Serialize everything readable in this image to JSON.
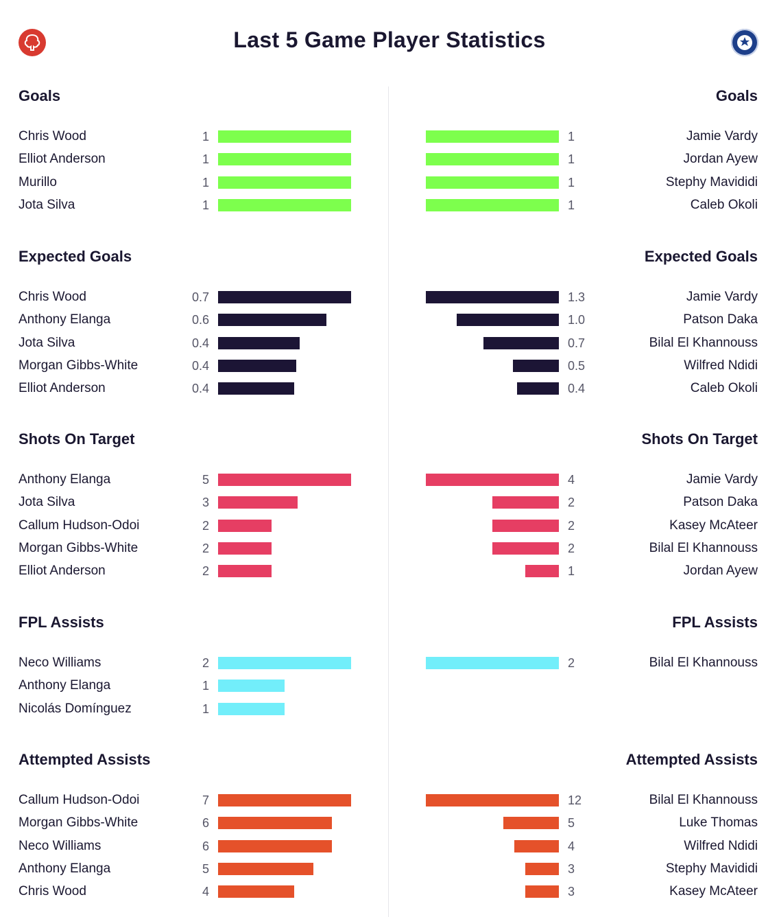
{
  "title": "Last 5 Game Player Statistics",
  "colors": {
    "goals": "#7dff4d",
    "xg": "#1c1535",
    "shots": "#e63e63",
    "assists": "#72eefa",
    "attempted": "#e5512a"
  },
  "chart_data": [
    {
      "type": "bar",
      "stat": "Goals",
      "color_key": "goals",
      "home": [
        {
          "name": "Chris Wood",
          "value": 1,
          "label": "1"
        },
        {
          "name": "Elliot Anderson",
          "value": 1,
          "label": "1"
        },
        {
          "name": "Murillo",
          "value": 1,
          "label": "1"
        },
        {
          "name": "Jota Silva",
          "value": 1,
          "label": "1"
        }
      ],
      "away": [
        {
          "name": "Jamie Vardy",
          "value": 1,
          "label": "1"
        },
        {
          "name": "Jordan Ayew",
          "value": 1,
          "label": "1"
        },
        {
          "name": "Stephy Mavididi",
          "value": 1,
          "label": "1"
        },
        {
          "name": "Caleb Okoli",
          "value": 1,
          "label": "1"
        }
      ]
    },
    {
      "type": "bar",
      "stat": "Expected Goals",
      "color_key": "xg",
      "home": [
        {
          "name": "Chris Wood",
          "value": 0.7,
          "label": "0.7"
        },
        {
          "name": "Anthony Elanga",
          "value": 0.57,
          "label": "0.6"
        },
        {
          "name": "Jota Silva",
          "value": 0.43,
          "label": "0.4"
        },
        {
          "name": "Morgan Gibbs-White",
          "value": 0.41,
          "label": "0.4"
        },
        {
          "name": "Elliot Anderson",
          "value": 0.4,
          "label": "0.4"
        }
      ],
      "away": [
        {
          "name": "Jamie Vardy",
          "value": 1.3,
          "label": "1.3"
        },
        {
          "name": "Patson Daka",
          "value": 1.0,
          "label": "1.0"
        },
        {
          "name": "Bilal El Khannouss",
          "value": 0.74,
          "label": "0.7"
        },
        {
          "name": "Wilfred Ndidi",
          "value": 0.45,
          "label": "0.5"
        },
        {
          "name": "Caleb Okoli",
          "value": 0.41,
          "label": "0.4"
        }
      ]
    },
    {
      "type": "bar",
      "stat": "Shots On Target",
      "color_key": "shots",
      "home": [
        {
          "name": "Anthony Elanga",
          "value": 5,
          "label": "5"
        },
        {
          "name": "Jota Silva",
          "value": 3,
          "label": "3"
        },
        {
          "name": "Callum Hudson-Odoi",
          "value": 2,
          "label": "2"
        },
        {
          "name": "Morgan Gibbs-White",
          "value": 2,
          "label": "2"
        },
        {
          "name": "Elliot Anderson",
          "value": 2,
          "label": "2"
        }
      ],
      "away": [
        {
          "name": "Jamie Vardy",
          "value": 4,
          "label": "4"
        },
        {
          "name": "Patson Daka",
          "value": 2,
          "label": "2"
        },
        {
          "name": "Kasey McAteer",
          "value": 2,
          "label": "2"
        },
        {
          "name": "Bilal El Khannouss",
          "value": 2,
          "label": "2"
        },
        {
          "name": "Jordan Ayew",
          "value": 1,
          "label": "1"
        }
      ]
    },
    {
      "type": "bar",
      "stat": "FPL Assists",
      "color_key": "assists",
      "home": [
        {
          "name": "Neco Williams",
          "value": 2,
          "label": "2"
        },
        {
          "name": "Anthony Elanga",
          "value": 1,
          "label": "1"
        },
        {
          "name": "Nicolás Domínguez",
          "value": 1,
          "label": "1"
        }
      ],
      "away": [
        {
          "name": "Bilal El Khannouss",
          "value": 2,
          "label": "2"
        }
      ]
    },
    {
      "type": "bar",
      "stat": "Attempted Assists",
      "color_key": "attempted",
      "home": [
        {
          "name": "Callum Hudson-Odoi",
          "value": 7,
          "label": "7"
        },
        {
          "name": "Morgan Gibbs-White",
          "value": 6,
          "label": "6"
        },
        {
          "name": "Neco Williams",
          "value": 6,
          "label": "6"
        },
        {
          "name": "Anthony Elanga",
          "value": 5,
          "label": "5"
        },
        {
          "name": "Chris Wood",
          "value": 4,
          "label": "4"
        }
      ],
      "away": [
        {
          "name": "Bilal El Khannouss",
          "value": 12,
          "label": "12"
        },
        {
          "name": "Luke Thomas",
          "value": 5,
          "label": "5"
        },
        {
          "name": "Wilfred Ndidi",
          "value": 4,
          "label": "4"
        },
        {
          "name": "Stephy Mavididi",
          "value": 3,
          "label": "3"
        },
        {
          "name": "Kasey McAteer",
          "value": 3,
          "label": "3"
        }
      ]
    }
  ]
}
